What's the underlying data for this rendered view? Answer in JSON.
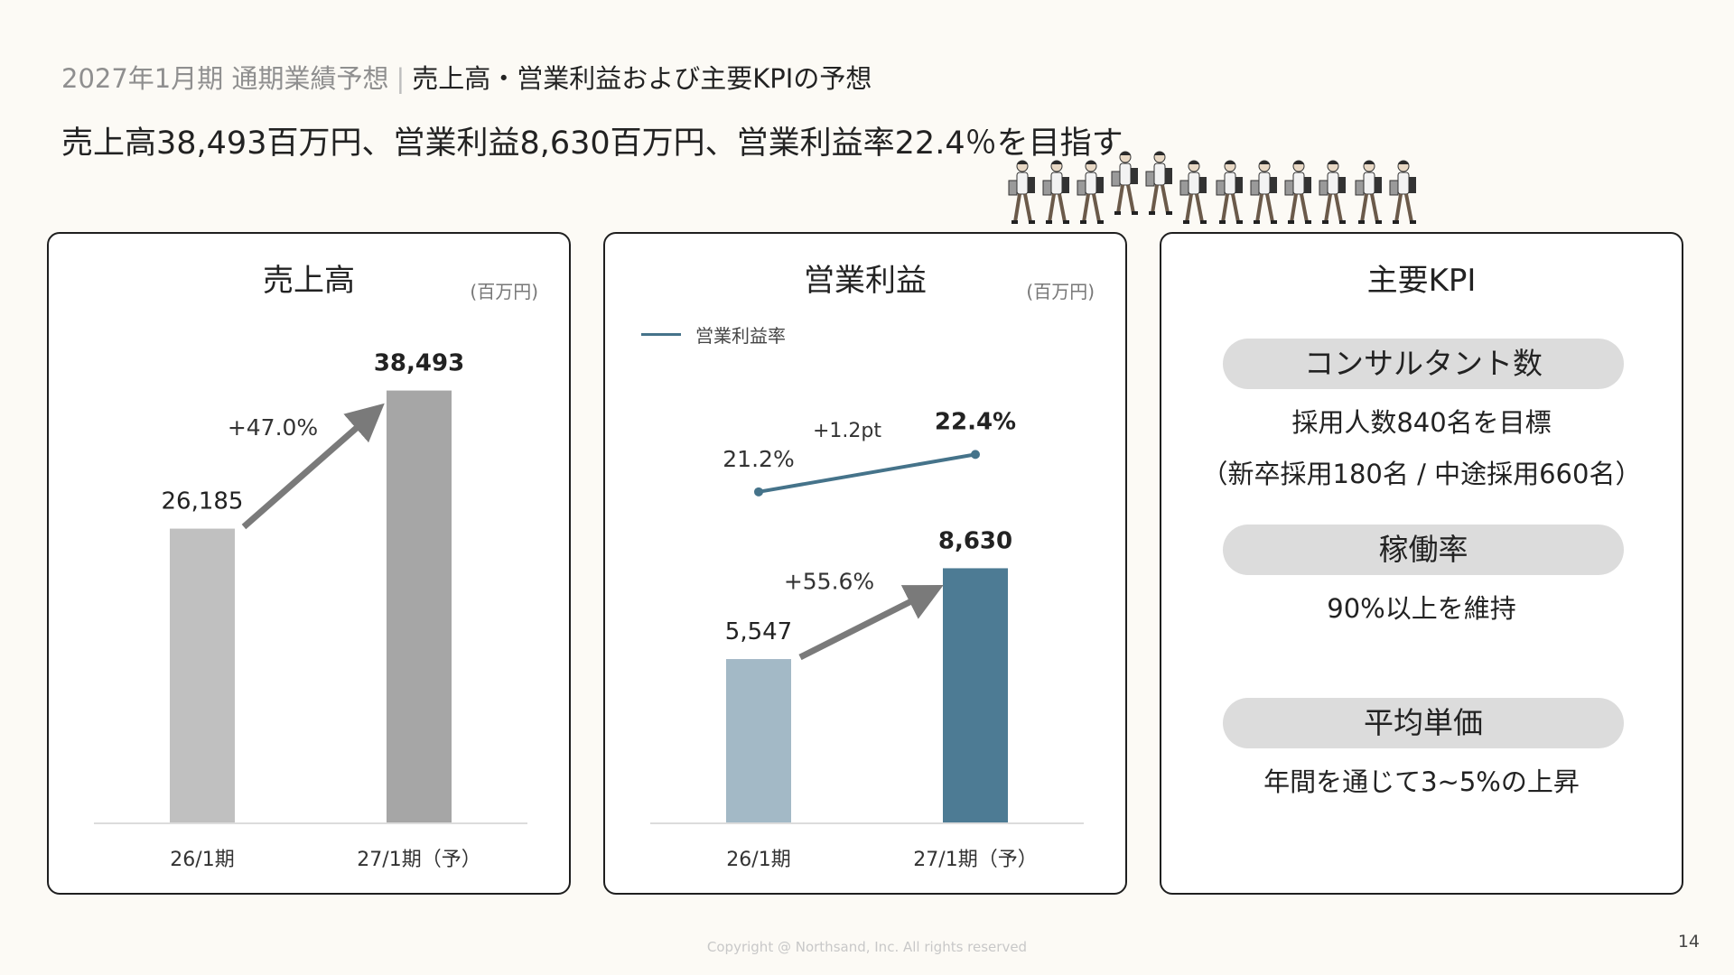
{
  "header": {
    "subtitle_grey": "2027年1月期 通期業績予想",
    "subtitle_sep": "|",
    "subtitle_main": "売上高・営業利益および主要KPIの予想",
    "headline": "売上高38,493百万円、営業利益8,630百万円、営業利益率22.4％を目指す"
  },
  "chart_data": [
    {
      "type": "bar",
      "title": "売上高",
      "unit": "(百万円)",
      "categories": [
        "26/1期",
        "27/1期（予）"
      ],
      "values": [
        26185,
        38493
      ],
      "value_labels": [
        "26,185",
        "38,493"
      ],
      "growth_label": "+47.0%",
      "colors": [
        "#c0c0c0",
        "#a6a6a6"
      ],
      "ylim": [
        0,
        42000
      ]
    },
    {
      "type": "bar",
      "title": "営業利益",
      "unit": "(百万円)",
      "categories": [
        "26/1期",
        "27/1期（予）"
      ],
      "values": [
        5547,
        8630
      ],
      "value_labels": [
        "5,547",
        "8,630"
      ],
      "growth_label": "+55.6%",
      "colors": [
        "#a3b9c6",
        "#4d7b94"
      ],
      "ylim": [
        0,
        16000
      ],
      "line_series": {
        "name": "営業利益率",
        "values": [
          21.2,
          22.4
        ],
        "value_labels": [
          "21.2%",
          "22.4%"
        ],
        "delta_label": "+1.2pt",
        "color": "#45738a"
      }
    }
  ],
  "kpi": {
    "title": "主要KPI",
    "items": [
      {
        "label": "コンサルタント数",
        "lines": [
          "採用人数840名を目標",
          "（新卒採用180名 / 中途採用660名）"
        ]
      },
      {
        "label": "稼働率",
        "lines": [
          "90%以上を維持"
        ]
      },
      {
        "label": "平均単価",
        "lines": [
          "年間を通じて3~5%の上昇"
        ]
      }
    ]
  },
  "footer": {
    "copyright": "Copyright @ Northsand, Inc. All rights reserved",
    "page_number": "14"
  }
}
